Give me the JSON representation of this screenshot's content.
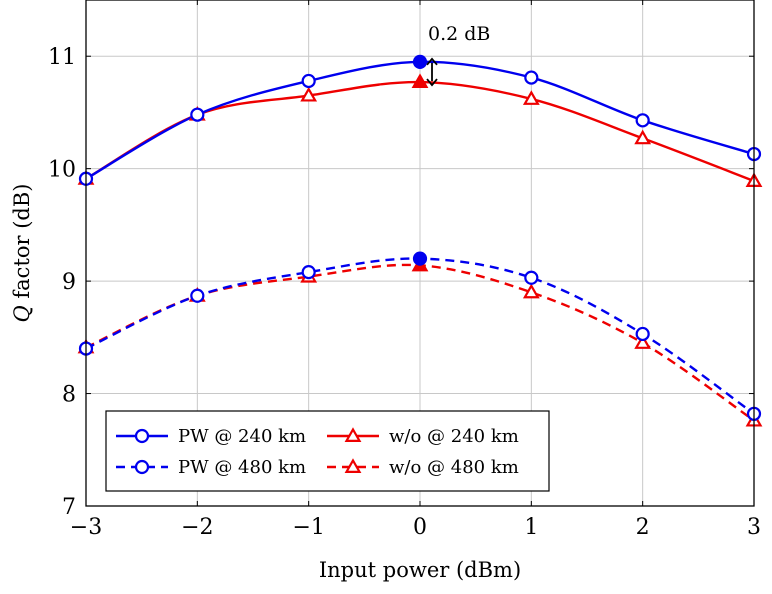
{
  "chart_data": {
    "type": "line",
    "xlabel": "Input power (dBm)",
    "ylabel_prefix": "Q",
    "ylabel_suffix": " factor (dB)",
    "xlim": [
      -3,
      3
    ],
    "ylim": [
      7,
      11.5
    ],
    "x_ticks": [
      -3,
      -2,
      -1,
      0,
      1,
      2,
      3
    ],
    "x_tick_labels": [
      "−3",
      "−2",
      "−1",
      "0",
      "1",
      "2",
      "3"
    ],
    "y_ticks": [
      7,
      8,
      9,
      10,
      11
    ],
    "y_tick_labels": [
      "7",
      "8",
      "9",
      "10",
      "11"
    ],
    "grid": true,
    "legend_position": "bottom-left",
    "x": [
      -3,
      -2,
      -1,
      0,
      1,
      2,
      3
    ],
    "series": [
      {
        "name": "PW @ 240 km",
        "values": [
          9.91,
          10.48,
          10.78,
          10.95,
          10.81,
          10.43,
          10.13
        ],
        "color": "#0000ee",
        "style": "solid",
        "marker": "circle",
        "highlight_index": 3
      },
      {
        "name": "w/o @ 240 km",
        "values": [
          9.91,
          10.48,
          10.65,
          10.77,
          10.62,
          10.27,
          9.89
        ],
        "color": "#ee0000",
        "style": "solid",
        "marker": "triangle",
        "highlight_index": 3
      },
      {
        "name": "PW @ 480 km",
        "values": [
          8.4,
          8.87,
          9.08,
          9.2,
          9.03,
          8.53,
          7.82
        ],
        "color": "#0000ee",
        "style": "dashed",
        "marker": "circle",
        "highlight_index": 3
      },
      {
        "name": "w/o @ 480 km",
        "values": [
          8.41,
          8.87,
          9.04,
          9.14,
          8.9,
          8.45,
          7.76
        ],
        "color": "#ee0000",
        "style": "dashed",
        "marker": "triangle",
        "highlight_index": 3
      }
    ],
    "annotations": [
      {
        "text": "0.2 dB",
        "x": 0,
        "y_from": 10.77,
        "y_to": 10.95
      }
    ]
  }
}
